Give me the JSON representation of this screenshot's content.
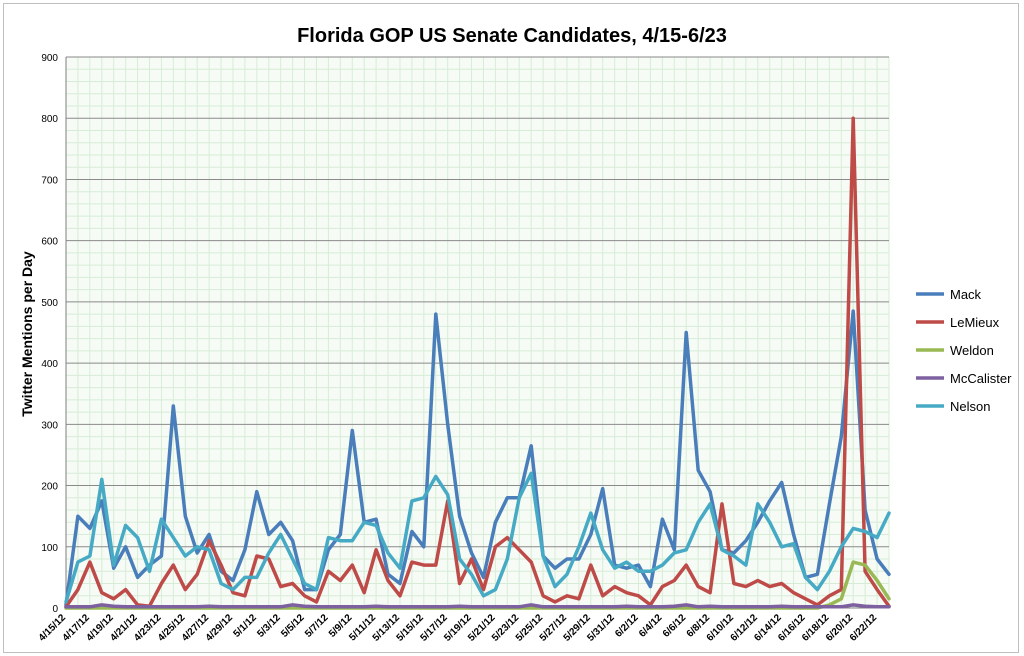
{
  "chart_data": {
    "type": "line",
    "title": "Florida GOP US Senate Candidates, 4/15-6/23",
    "ylabel": "Twitter Mentions per Day",
    "xlabel": "",
    "ylim": [
      0,
      900
    ],
    "yticks": [
      0,
      100,
      200,
      300,
      400,
      500,
      600,
      700,
      800,
      900
    ],
    "grid": "major and minor",
    "legend_position": "right",
    "x_tick_labels": [
      "4/15/12",
      "4/17/12",
      "4/19/12",
      "4/21/12",
      "4/23/12",
      "4/25/12",
      "4/27/12",
      "4/29/12",
      "5/1/12",
      "5/3/12",
      "5/5/12",
      "5/7/12",
      "5/9/12",
      "5/11/12",
      "5/13/12",
      "5/15/12",
      "5/17/12",
      "5/19/12",
      "5/21/12",
      "5/23/12",
      "5/25/12",
      "5/27/12",
      "5/29/12",
      "5/31/12",
      "6/2/12",
      "6/4/12",
      "6/6/12",
      "6/8/12",
      "6/10/12",
      "6/12/12",
      "6/14/12",
      "6/16/12",
      "6/18/12",
      "6/20/12",
      "6/22/12"
    ],
    "x": [
      "4/15/12",
      "4/16/12",
      "4/17/12",
      "4/18/12",
      "4/19/12",
      "4/20/12",
      "4/21/12",
      "4/22/12",
      "4/23/12",
      "4/24/12",
      "4/25/12",
      "4/26/12",
      "4/27/12",
      "4/28/12",
      "4/29/12",
      "4/30/12",
      "5/1/12",
      "5/2/12",
      "5/3/12",
      "5/4/12",
      "5/5/12",
      "5/6/12",
      "5/7/12",
      "5/8/12",
      "5/9/12",
      "5/10/12",
      "5/11/12",
      "5/12/12",
      "5/13/12",
      "5/14/12",
      "5/15/12",
      "5/16/12",
      "5/17/12",
      "5/18/12",
      "5/19/12",
      "5/20/12",
      "5/21/12",
      "5/22/12",
      "5/23/12",
      "5/24/12",
      "5/25/12",
      "5/26/12",
      "5/27/12",
      "5/28/12",
      "5/29/12",
      "5/30/12",
      "5/31/12",
      "6/1/12",
      "6/2/12",
      "6/3/12",
      "6/4/12",
      "6/5/12",
      "6/6/12",
      "6/7/12",
      "6/8/12",
      "6/9/12",
      "6/10/12",
      "6/11/12",
      "6/12/12",
      "6/13/12",
      "6/14/12",
      "6/15/12",
      "6/16/12",
      "6/17/12",
      "6/18/12",
      "6/19/12",
      "6/20/12",
      "6/21/12",
      "6/22/12",
      "6/23/12"
    ],
    "series": [
      {
        "name": "Mack",
        "color": "#4a7ebb",
        "values": [
          5,
          150,
          130,
          175,
          65,
          100,
          50,
          70,
          85,
          330,
          150,
          90,
          120,
          60,
          45,
          95,
          190,
          120,
          140,
          110,
          30,
          30,
          95,
          120,
          290,
          140,
          145,
          55,
          40,
          125,
          100,
          480,
          300,
          150,
          90,
          50,
          140,
          180,
          180,
          265,
          85,
          65,
          80,
          80,
          120,
          195,
          70,
          65,
          70,
          35,
          145,
          95,
          450,
          225,
          190,
          95,
          90,
          110,
          140,
          175,
          205,
          120,
          50,
          55,
          170,
          280,
          485,
          160,
          80,
          55
        ]
      },
      {
        "name": "LeMieux",
        "color": "#be4b48",
        "values": [
          2,
          30,
          75,
          25,
          15,
          30,
          5,
          3,
          40,
          70,
          30,
          55,
          110,
          70,
          25,
          20,
          85,
          80,
          35,
          40,
          20,
          10,
          60,
          45,
          70,
          25,
          95,
          45,
          20,
          75,
          70,
          70,
          175,
          40,
          80,
          30,
          100,
          115,
          95,
          75,
          20,
          10,
          20,
          15,
          70,
          20,
          35,
          25,
          20,
          5,
          35,
          45,
          70,
          35,
          25,
          170,
          40,
          35,
          45,
          35,
          40,
          25,
          15,
          5,
          20,
          30,
          800,
          60,
          30,
          3
        ]
      },
      {
        "name": "Weldon",
        "color": "#98b954",
        "values": [
          0,
          0,
          0,
          0,
          0,
          0,
          0,
          0,
          0,
          0,
          0,
          0,
          0,
          0,
          0,
          0,
          0,
          0,
          0,
          0,
          0,
          0,
          0,
          0,
          0,
          0,
          0,
          0,
          0,
          0,
          0,
          0,
          0,
          0,
          0,
          0,
          0,
          0,
          0,
          0,
          0,
          0,
          0,
          0,
          0,
          0,
          0,
          0,
          0,
          0,
          0,
          0,
          0,
          0,
          0,
          0,
          0,
          0,
          0,
          0,
          0,
          0,
          0,
          0,
          5,
          15,
          75,
          70,
          45,
          15
        ]
      },
      {
        "name": "McCalister",
        "color": "#7d60a0",
        "values": [
          2,
          2,
          2,
          5,
          3,
          2,
          2,
          2,
          2,
          2,
          2,
          2,
          3,
          2,
          2,
          2,
          2,
          2,
          2,
          5,
          3,
          2,
          2,
          2,
          2,
          2,
          3,
          2,
          2,
          2,
          2,
          2,
          2,
          3,
          2,
          2,
          2,
          2,
          2,
          5,
          2,
          2,
          2,
          2,
          2,
          2,
          2,
          3,
          2,
          2,
          2,
          3,
          5,
          2,
          3,
          2,
          2,
          2,
          2,
          2,
          3,
          2,
          2,
          2,
          2,
          2,
          5,
          3,
          2,
          2
        ]
      },
      {
        "name": "Nelson",
        "color": "#46aac5",
        "values": [
          10,
          75,
          85,
          210,
          70,
          135,
          115,
          60,
          145,
          115,
          85,
          100,
          95,
          40,
          30,
          50,
          50,
          90,
          120,
          80,
          40,
          30,
          115,
          110,
          110,
          140,
          135,
          90,
          65,
          175,
          180,
          215,
          185,
          80,
          55,
          20,
          30,
          80,
          180,
          220,
          85,
          35,
          55,
          100,
          155,
          95,
          65,
          75,
          60,
          60,
          70,
          90,
          95,
          140,
          170,
          95,
          85,
          70,
          170,
          140,
          100,
          105,
          50,
          30,
          60,
          100,
          130,
          125,
          115,
          155
        ]
      }
    ]
  }
}
